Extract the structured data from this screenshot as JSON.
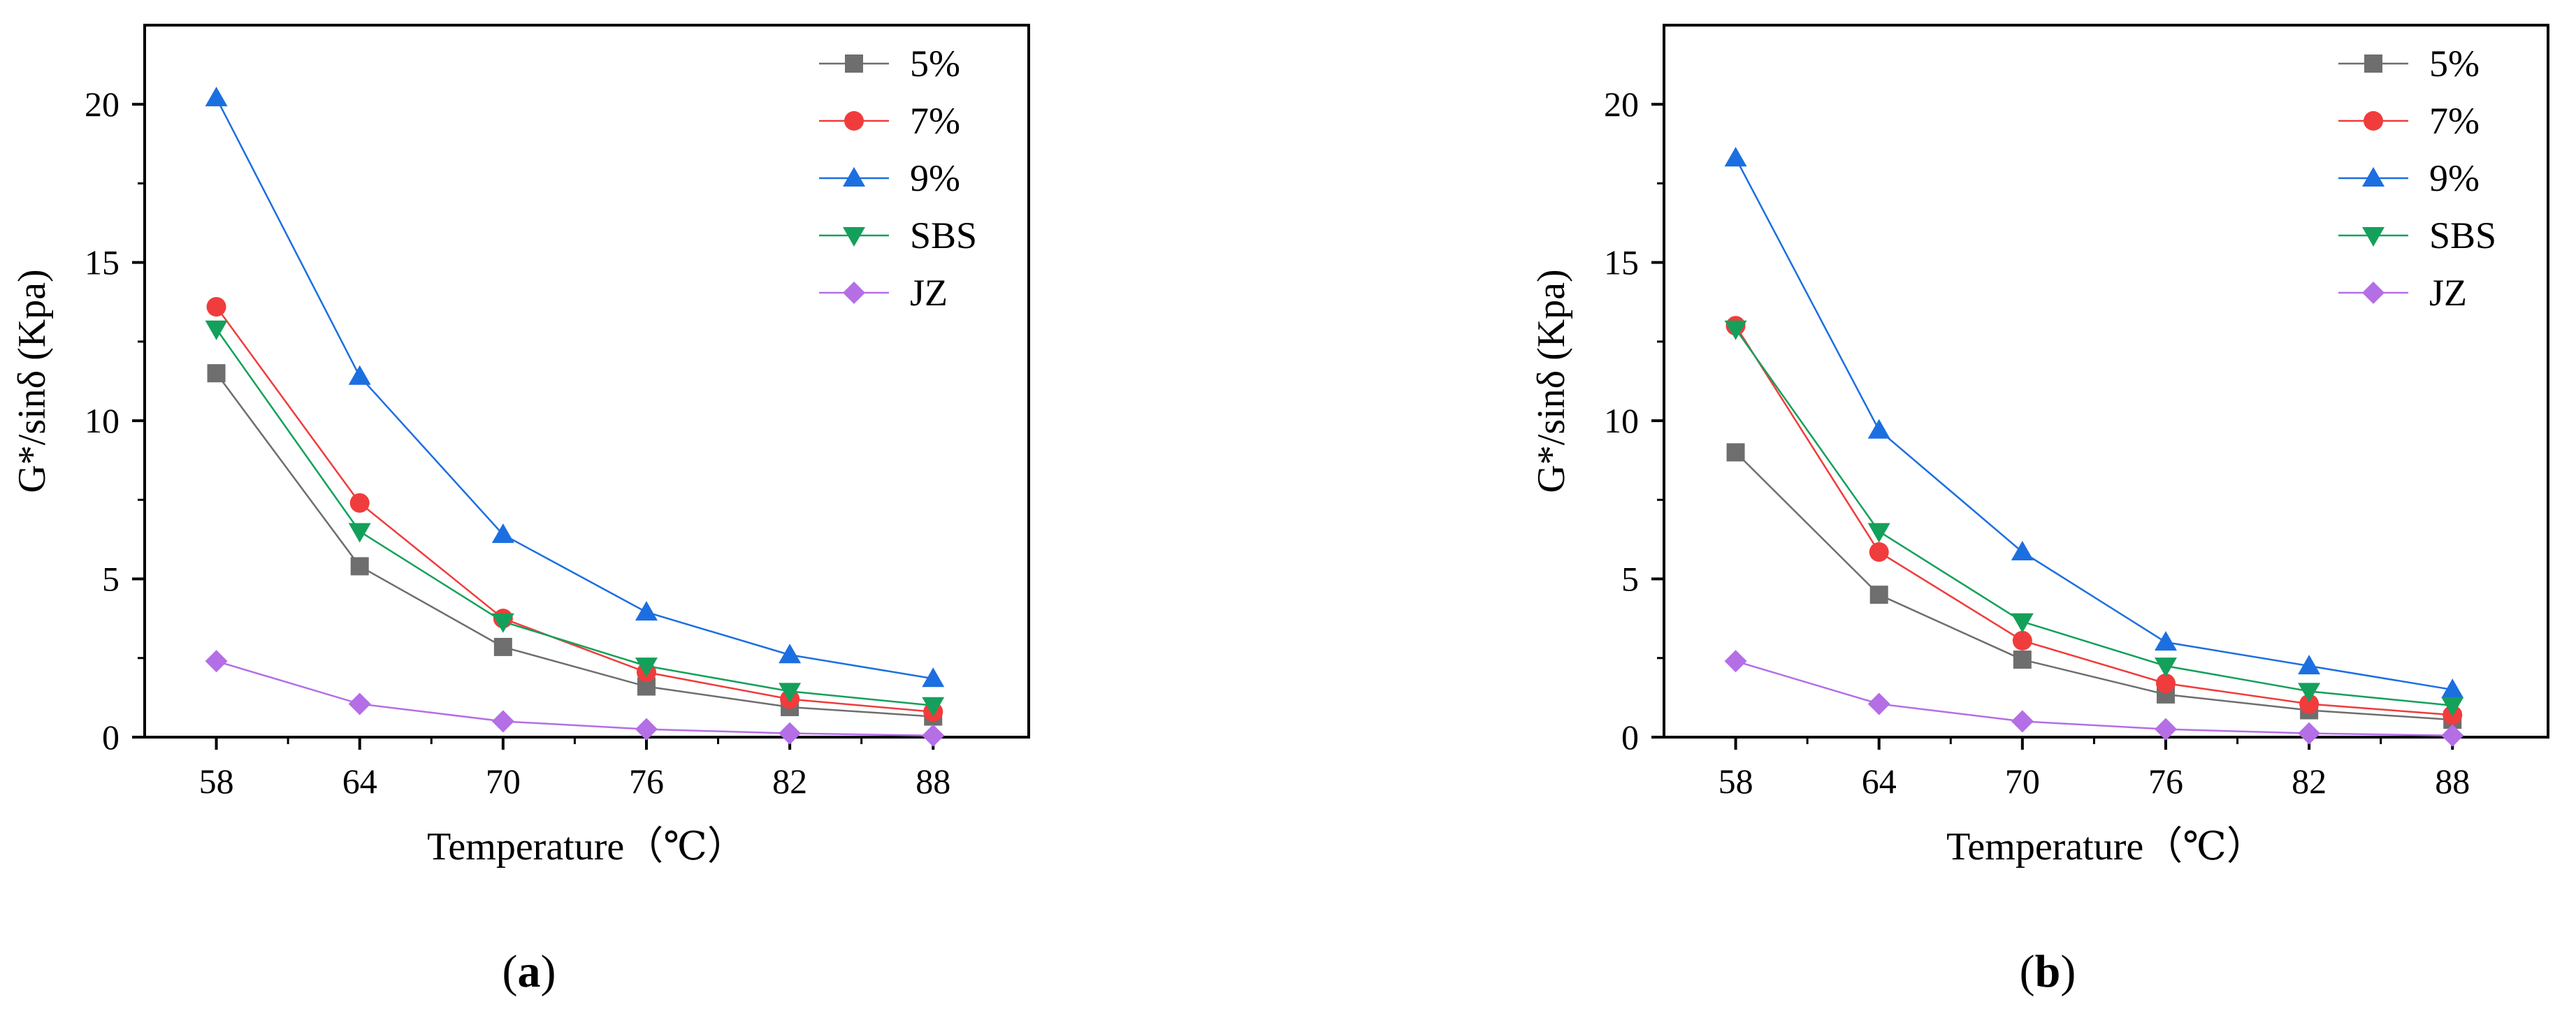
{
  "colors": {
    "5%": "#6e6e6e",
    "7%": "#f03c3c",
    "9%": "#1c6fe0",
    "SBS": "#14a05a",
    "JZ": "#b46ee6",
    "axis": "#000000"
  },
  "chart_data": [
    {
      "type": "line",
      "panel_label": "(a)",
      "xlabel": "Temperature（℃）",
      "ylabel": "G*/sinδ (Kpa)",
      "categories": [
        "58",
        "64",
        "70",
        "76",
        "82",
        "88"
      ],
      "x": [
        58,
        64,
        70,
        76,
        82,
        88
      ],
      "xlim": [
        55,
        92
      ],
      "ylim": [
        0,
        22.5
      ],
      "yticks": [
        0,
        5,
        10,
        15,
        20
      ],
      "legend_position": "top-right",
      "series": [
        {
          "name": "5%",
          "marker": "square",
          "values": [
            11.5,
            5.4,
            2.85,
            1.6,
            0.95,
            0.65
          ]
        },
        {
          "name": "7%",
          "marker": "circle",
          "values": [
            13.6,
            7.4,
            3.75,
            2.05,
            1.2,
            0.8
          ]
        },
        {
          "name": "9%",
          "marker": "triangle-up",
          "values": [
            20.2,
            11.4,
            6.4,
            3.95,
            2.6,
            1.85
          ]
        },
        {
          "name": "SBS",
          "marker": "triangle-down",
          "values": [
            12.9,
            6.5,
            3.65,
            2.25,
            1.45,
            1.0
          ]
        },
        {
          "name": "JZ",
          "marker": "diamond",
          "values": [
            2.4,
            1.05,
            0.5,
            0.25,
            0.12,
            0.05
          ]
        }
      ]
    },
    {
      "type": "line",
      "panel_label": "(b)",
      "xlabel": "Temperature（℃）",
      "ylabel": "G*/sinδ (Kpa)",
      "categories": [
        "58",
        "64",
        "70",
        "76",
        "82",
        "88"
      ],
      "x": [
        58,
        64,
        70,
        76,
        82,
        88
      ],
      "xlim": [
        55,
        92
      ],
      "ylim": [
        0,
        22.5
      ],
      "yticks": [
        0,
        5,
        10,
        15,
        20
      ],
      "legend_position": "top-right",
      "series": [
        {
          "name": "5%",
          "marker": "square",
          "values": [
            9.0,
            4.5,
            2.45,
            1.35,
            0.85,
            0.55
          ]
        },
        {
          "name": "7%",
          "marker": "circle",
          "values": [
            13.0,
            5.85,
            3.05,
            1.7,
            1.05,
            0.7
          ]
        },
        {
          "name": "9%",
          "marker": "triangle-up",
          "values": [
            18.3,
            9.7,
            5.85,
            3.0,
            2.25,
            1.5
          ]
        },
        {
          "name": "SBS",
          "marker": "triangle-down",
          "values": [
            12.9,
            6.5,
            3.65,
            2.25,
            1.45,
            1.0
          ]
        },
        {
          "name": "JZ",
          "marker": "diamond",
          "values": [
            2.4,
            1.05,
            0.5,
            0.25,
            0.12,
            0.05
          ]
        }
      ]
    }
  ]
}
